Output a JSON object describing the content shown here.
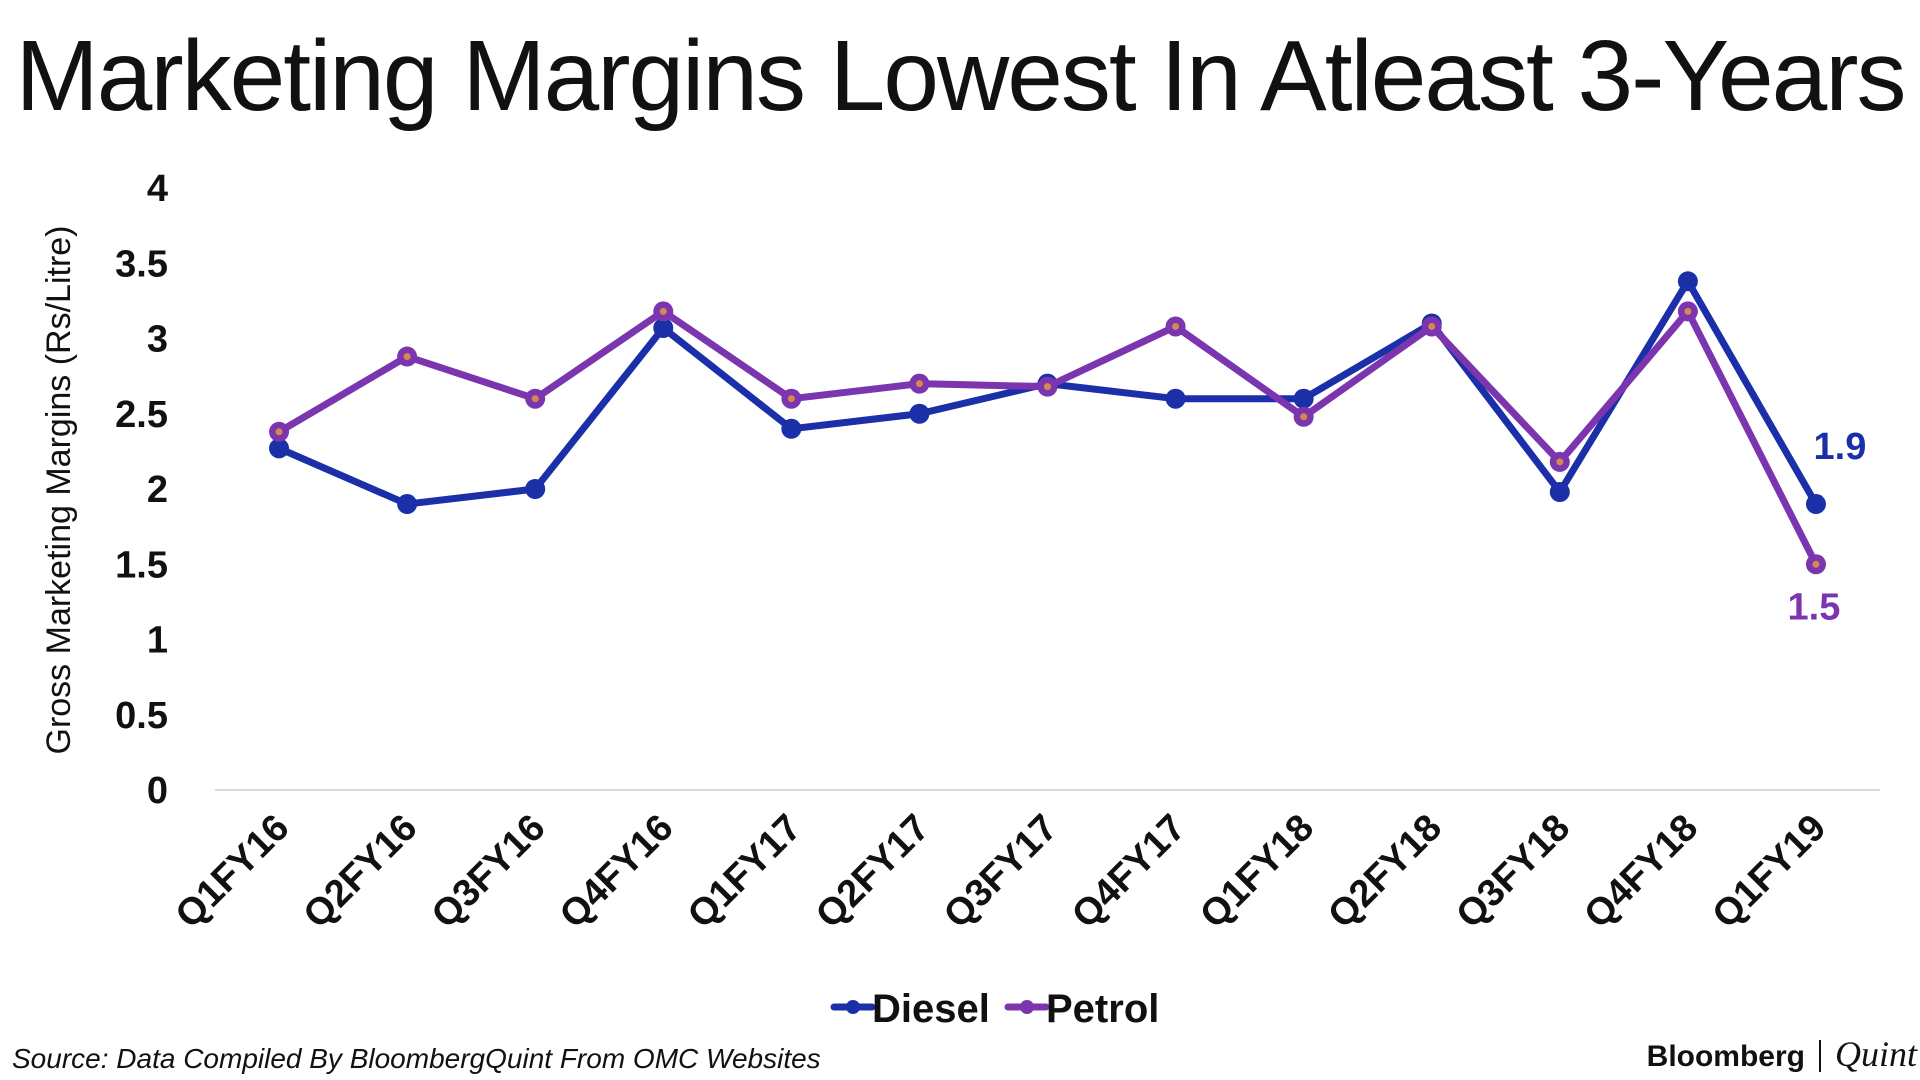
{
  "chart_data": {
    "type": "line",
    "title": "Marketing Margins Lowest In Atleast 3-Years",
    "ylabel": "Gross Marketing Margins (Rs/Litre)",
    "xlabel": "",
    "ylim": [
      0,
      4
    ],
    "yticks": [
      "0",
      "0.5",
      "1",
      "1.5",
      "2",
      "2.5",
      "3",
      "3.5",
      "4"
    ],
    "categories": [
      "Q1FY16",
      "Q2FY16",
      "Q3FY16",
      "Q4FY16",
      "Q1FY17",
      "Q2FY17",
      "Q3FY17",
      "Q4FY17",
      "Q1FY18",
      "Q2FY18",
      "Q3FY18",
      "Q4FY18",
      "Q1FY19"
    ],
    "series": [
      {
        "name": "Diesel",
        "color": "#1a2fa8",
        "values": [
          2.27,
          1.9,
          2.0,
          3.07,
          2.4,
          2.5,
          2.7,
          2.6,
          2.6,
          3.1,
          1.98,
          3.38,
          1.9
        ],
        "end_label": "1.9"
      },
      {
        "name": "Petrol",
        "color": "#7b35ae",
        "values": [
          2.38,
          2.88,
          2.6,
          3.18,
          2.6,
          2.7,
          2.68,
          3.08,
          2.48,
          3.08,
          2.18,
          3.18,
          1.5
        ],
        "end_label": "1.5"
      }
    ],
    "grid": false,
    "legend": "bottom-center"
  },
  "source": "Source: Data Compiled By BloombergQuint From OMC Websites",
  "brand": {
    "name1": "Bloomberg",
    "name2": "Quint"
  }
}
